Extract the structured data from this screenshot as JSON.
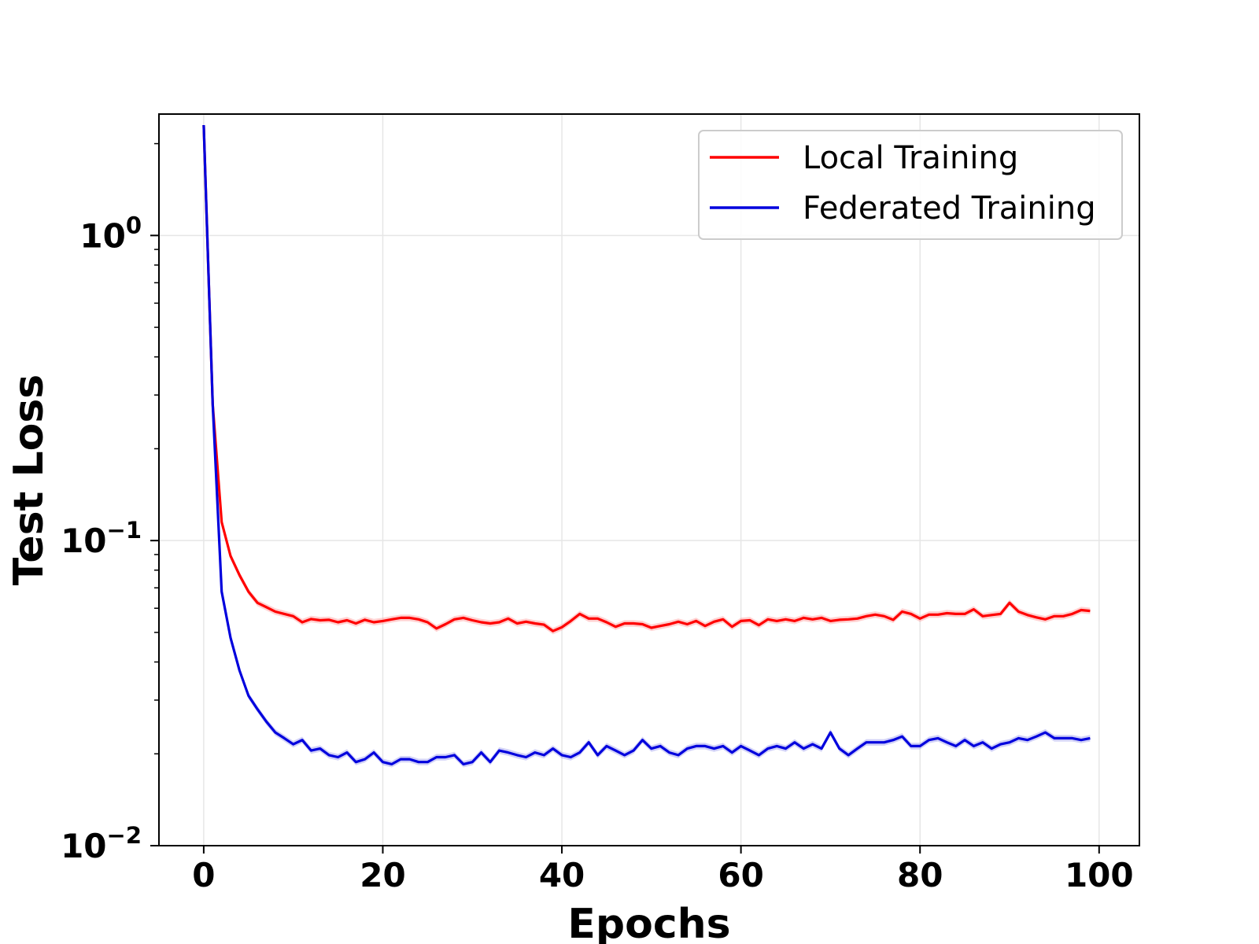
{
  "chart_data": {
    "type": "line",
    "xlabel": "Epochs",
    "ylabel": "Test Loss",
    "yscale": "log",
    "xlim": [
      -5,
      104.5
    ],
    "ylim": [
      0.01,
      2.5
    ],
    "xticks": [
      {
        "value": 0,
        "label": "0"
      },
      {
        "value": 20,
        "label": "20"
      },
      {
        "value": 40,
        "label": "40"
      },
      {
        "value": 60,
        "label": "60"
      },
      {
        "value": 80,
        "label": "80"
      },
      {
        "value": 100,
        "label": "100"
      }
    ],
    "yticks": [
      {
        "value": 1,
        "base": "10",
        "exp": "0"
      },
      {
        "value": 0.1,
        "base": "10",
        "exp": "−1"
      },
      {
        "value": 0.01,
        "base": "10",
        "exp": "−2"
      }
    ],
    "grid": true,
    "legend_position": "top-right",
    "series": [
      {
        "name": "Local Training",
        "color": "#ff0000",
        "band_color": "#ff9999",
        "x": [
          0,
          1,
          2,
          3,
          4,
          5,
          6,
          7,
          8,
          9,
          10,
          11,
          12,
          13,
          14,
          15,
          16,
          17,
          18,
          19,
          20,
          21,
          22,
          23,
          24,
          25,
          26,
          27,
          28,
          29,
          30,
          31,
          32,
          33,
          34,
          35,
          36,
          37,
          38,
          39,
          40,
          41,
          42,
          43,
          44,
          45,
          46,
          47,
          48,
          49,
          50,
          51,
          52,
          53,
          54,
          55,
          56,
          57,
          58,
          59,
          60,
          61,
          62,
          63,
          64,
          65,
          66,
          67,
          68,
          69,
          70,
          71,
          72,
          73,
          74,
          75,
          76,
          77,
          78,
          79,
          80,
          81,
          82,
          83,
          84,
          85,
          86,
          87,
          88,
          89,
          90,
          91,
          92,
          93,
          94,
          95,
          96,
          97,
          98,
          99
        ],
        "values": [
          2.3,
          0.28,
          0.115,
          0.089,
          0.077,
          0.068,
          0.0625,
          0.0605,
          0.0585,
          0.0575,
          0.0565,
          0.054,
          0.0553,
          0.0548,
          0.055,
          0.054,
          0.0548,
          0.0535,
          0.055,
          0.054,
          0.0545,
          0.0552,
          0.0558,
          0.0558,
          0.0552,
          0.054,
          0.0515,
          0.0532,
          0.0552,
          0.0558,
          0.0548,
          0.054,
          0.0535,
          0.054,
          0.0555,
          0.0535,
          0.0542,
          0.0535,
          0.053,
          0.0505,
          0.052,
          0.0545,
          0.0575,
          0.0555,
          0.0555,
          0.054,
          0.0522,
          0.0535,
          0.0535,
          0.0532,
          0.0518,
          0.0525,
          0.0532,
          0.0542,
          0.0532,
          0.0545,
          0.0525,
          0.0542,
          0.0552,
          0.0522,
          0.0545,
          0.0548,
          0.0528,
          0.0552,
          0.0545,
          0.0552,
          0.0545,
          0.0558,
          0.0552,
          0.0558,
          0.0545,
          0.055,
          0.0552,
          0.0555,
          0.0565,
          0.0572,
          0.0565,
          0.055,
          0.0585,
          0.0575,
          0.0555,
          0.0572,
          0.0572,
          0.0578,
          0.0575,
          0.0575,
          0.0595,
          0.0565,
          0.057,
          0.0575,
          0.0625,
          0.0585,
          0.057,
          0.056,
          0.0552,
          0.0565,
          0.0565,
          0.0575,
          0.0592,
          0.0588
        ]
      },
      {
        "name": "Federated Training",
        "color": "#0000dd",
        "band_color": "#9999ee",
        "x": [
          0,
          1,
          2,
          3,
          4,
          5,
          6,
          7,
          8,
          9,
          10,
          11,
          12,
          13,
          14,
          15,
          16,
          17,
          18,
          19,
          20,
          21,
          22,
          23,
          24,
          25,
          26,
          27,
          28,
          29,
          30,
          31,
          32,
          33,
          34,
          35,
          36,
          37,
          38,
          39,
          40,
          41,
          42,
          43,
          44,
          45,
          46,
          47,
          48,
          49,
          50,
          51,
          52,
          53,
          54,
          55,
          56,
          57,
          58,
          59,
          60,
          61,
          62,
          63,
          64,
          65,
          66,
          67,
          68,
          69,
          70,
          71,
          72,
          73,
          74,
          75,
          76,
          77,
          78,
          79,
          80,
          81,
          82,
          83,
          84,
          85,
          86,
          87,
          88,
          89,
          90,
          91,
          92,
          93,
          94,
          95,
          96,
          97,
          98,
          99
        ],
        "values": [
          2.3,
          0.28,
          0.068,
          0.048,
          0.0375,
          0.031,
          0.028,
          0.0255,
          0.0235,
          0.0225,
          0.0215,
          0.0222,
          0.0205,
          0.0208,
          0.0198,
          0.0195,
          0.0202,
          0.0188,
          0.0192,
          0.0202,
          0.0188,
          0.0185,
          0.0192,
          0.0192,
          0.0188,
          0.0188,
          0.0195,
          0.0195,
          0.0198,
          0.0185,
          0.0188,
          0.0202,
          0.0188,
          0.0205,
          0.0202,
          0.0198,
          0.0195,
          0.0202,
          0.0198,
          0.0208,
          0.0198,
          0.0195,
          0.0202,
          0.0218,
          0.0198,
          0.0212,
          0.0205,
          0.0198,
          0.0205,
          0.0222,
          0.0208,
          0.0212,
          0.0202,
          0.0198,
          0.0208,
          0.0212,
          0.0212,
          0.0208,
          0.0212,
          0.0202,
          0.0212,
          0.0205,
          0.0198,
          0.0208,
          0.0212,
          0.0208,
          0.0218,
          0.0208,
          0.0215,
          0.0208,
          0.0235,
          0.0208,
          0.0198,
          0.0208,
          0.0218,
          0.0218,
          0.0218,
          0.0222,
          0.0228,
          0.0212,
          0.0212,
          0.0222,
          0.0225,
          0.0218,
          0.0212,
          0.0222,
          0.0212,
          0.0218,
          0.0208,
          0.0215,
          0.0218,
          0.0225,
          0.0222,
          0.0228,
          0.0235,
          0.0225,
          0.0225,
          0.0225,
          0.0222,
          0.0225
        ]
      }
    ]
  }
}
